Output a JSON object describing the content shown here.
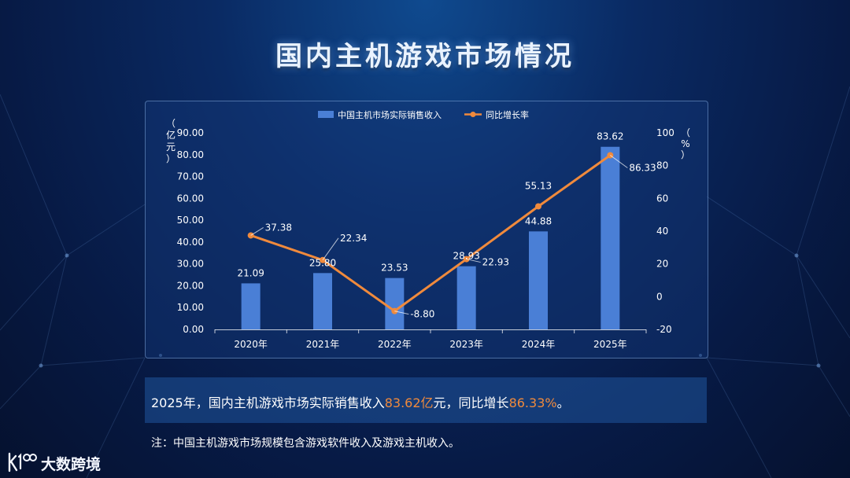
{
  "page": {
    "title": "国内主机游戏市场情况"
  },
  "chart_data": {
    "type": "bar",
    "categories": [
      "2020年",
      "2021年",
      "2022年",
      "2023年",
      "2024年",
      "2025年"
    ],
    "series": [
      {
        "name": "中国主机市场实际销售收入",
        "type": "bar",
        "axis": "left",
        "values": [
          21.09,
          25.8,
          23.53,
          28.93,
          44.88,
          83.62
        ],
        "labels": [
          "21.09",
          "25.80",
          "23.53",
          "28.93",
          "44.88",
          "83.62"
        ]
      },
      {
        "name": "同比增长率",
        "type": "line",
        "axis": "right",
        "values": [
          37.38,
          22.34,
          -8.8,
          22.93,
          55.13,
          86.33
        ],
        "labels": [
          "37.38",
          "22.34",
          "-8.80",
          "22.93",
          "55.13",
          "86.33"
        ]
      }
    ],
    "y_left": {
      "label_chars": [
        "（",
        "亿",
        "元",
        "）"
      ],
      "range": [
        0,
        90
      ],
      "ticks": [
        "0.00",
        "10.00",
        "20.00",
        "30.00",
        "40.00",
        "50.00",
        "60.00",
        "70.00",
        "80.00",
        "90.00"
      ]
    },
    "y_right": {
      "label_chars": [
        "（",
        "%",
        "）"
      ],
      "range": [
        -20,
        100
      ],
      "ticks": [
        "-20",
        "0",
        "20",
        "40",
        "60",
        "80",
        "100"
      ]
    },
    "legend_position": "top-center",
    "grid": false,
    "colors": {
      "bar": "#4a7fd6",
      "line": "#f08a3c"
    }
  },
  "summary": {
    "before": "2025年，国内主机游戏市场实际销售收入",
    "revenue": "83.62亿",
    "middle": "元，同比增长",
    "growth": "86.33%",
    "after": "。"
  },
  "note": "注：中国主机游戏市场规模包含游戏软件收入及游戏主机收入。",
  "logo": {
    "text": "大数跨境",
    "icon": "k100-logo-icon"
  }
}
